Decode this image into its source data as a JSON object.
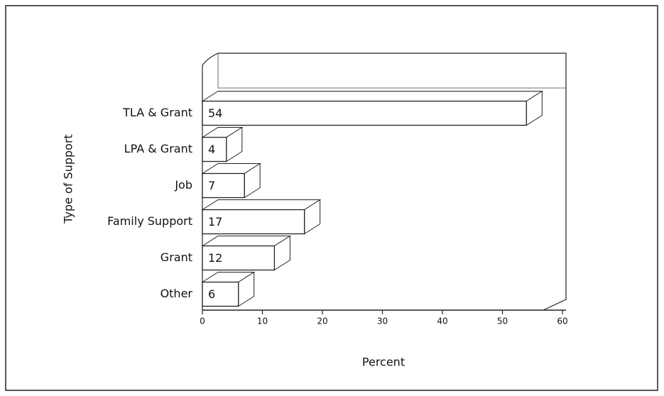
{
  "chart_data": {
    "type": "bar3d",
    "orientation": "horizontal",
    "categories": [
      "TLA & Grant",
      "LPA & Grant",
      "Job",
      "Family Support",
      "Grant",
      "Other"
    ],
    "values": [
      54,
      4,
      7,
      17,
      12,
      6
    ],
    "xlabel": "Percent",
    "ylabel": "Type of Support",
    "xlim": [
      0,
      60
    ],
    "xticks": [
      0,
      10,
      20,
      30,
      40,
      50,
      60
    ],
    "color": "#ffffff"
  }
}
